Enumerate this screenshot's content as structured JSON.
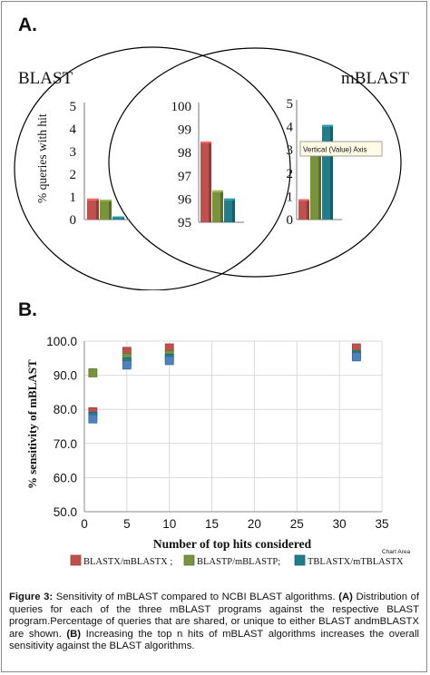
{
  "panel_a_label": "A.",
  "panel_b_label": "B.",
  "venn": {
    "left_label": "BLAST",
    "right_label": "mBLAST",
    "tooltip": "Vertical (Value) Axis"
  },
  "colors": {
    "red": "#c0504d",
    "green": "#77933c",
    "teal": "#1f7d8c",
    "blue": "#4f81bd",
    "circle": "#000000"
  },
  "chart_data": [
    {
      "type": "bar",
      "region": "BLAST only",
      "ylabel": "% queries with hit",
      "yticks": [
        "0",
        "1",
        "2",
        "3",
        "4",
        "5"
      ],
      "ylim": [
        0,
        5
      ],
      "series": [
        {
          "color": "#c0504d",
          "values": [
            0.85
          ]
        },
        {
          "color": "#77933c",
          "values": [
            0.8
          ]
        },
        {
          "color": "#1f7d8c",
          "values": [
            0.05
          ]
        }
      ]
    },
    {
      "type": "bar",
      "region": "shared",
      "yticks": [
        "95",
        "96",
        "97",
        "98",
        "99",
        "100"
      ],
      "ylim": [
        95,
        100
      ],
      "series": [
        {
          "color": "#c0504d",
          "values": [
            98.4
          ]
        },
        {
          "color": "#77933c",
          "values": [
            96.3
          ]
        },
        {
          "color": "#1f7d8c",
          "values": [
            95.95
          ]
        }
      ]
    },
    {
      "type": "bar",
      "region": "mBLAST only",
      "yticks": [
        "0",
        "1",
        "2",
        "3",
        "4",
        "5"
      ],
      "ylim": [
        0,
        5
      ],
      "series": [
        {
          "color": "#c0504d",
          "values": [
            0.8
          ]
        },
        {
          "color": "#77933c",
          "values": [
            2.9
          ]
        },
        {
          "color": "#1f7d8c",
          "values": [
            4.0
          ]
        }
      ]
    },
    {
      "type": "scatter",
      "xlabel": "Number of top hits considered",
      "ylabel": "% sensitivity of mBLAST",
      "xlim": [
        0,
        35
      ],
      "ylim": [
        50,
        100
      ],
      "xticks": [
        "0",
        "5",
        "10",
        "15",
        "20",
        "25",
        "30",
        "35"
      ],
      "yticks": [
        "50.0",
        "60.0",
        "70.0",
        "80.0",
        "90.0",
        "100.0"
      ],
      "grid": true,
      "legend_position": "bottom",
      "chart_area_tag": "Chart Area",
      "series": [
        {
          "name": "BLASTX/mBLASTX ;",
          "color": "#c0504d",
          "points": [
            [
              1,
              79.3
            ],
            [
              5,
              97.0
            ],
            [
              10,
              98.0
            ],
            [
              32,
              98.0
            ]
          ]
        },
        {
          "name": "BLASTP/mBLASTP;",
          "color": "#77933c",
          "points": [
            [
              1,
              90.7
            ],
            [
              5,
              95.2
            ],
            [
              10,
              96.0
            ],
            [
              32,
              96.2
            ]
          ]
        },
        {
          "name": "TBLASTX/mTBLASTX",
          "color": "#1f7d8c",
          "points": [
            [
              1,
              78.0
            ],
            [
              5,
              93.9
            ],
            [
              10,
              95.0
            ],
            [
              32,
              95.9
            ]
          ]
        },
        {
          "color": "#4f81bd",
          "points": [
            [
              1,
              77.2
            ],
            [
              5,
              93.0
            ],
            [
              10,
              94.3
            ],
            [
              32,
              95.4
            ]
          ]
        }
      ]
    }
  ],
  "caption": {
    "figure_label": "Figure 3:",
    "text_1": " Sensitivity of mBLAST compared to NCBI BLAST algorithms. ",
    "a_label": "(A)",
    "text_2": " Distribution of queries for each of the three mBLAST programs against the respective BLAST program.Percentage of queries that are shared, or unique to either BLAST andmBLASTX are shown. ",
    "b_label": "(B)",
    "text_3": " Increasing the top n hits of mBLAST algorithms increases the overall sensitivity against the BLAST algorithms."
  }
}
